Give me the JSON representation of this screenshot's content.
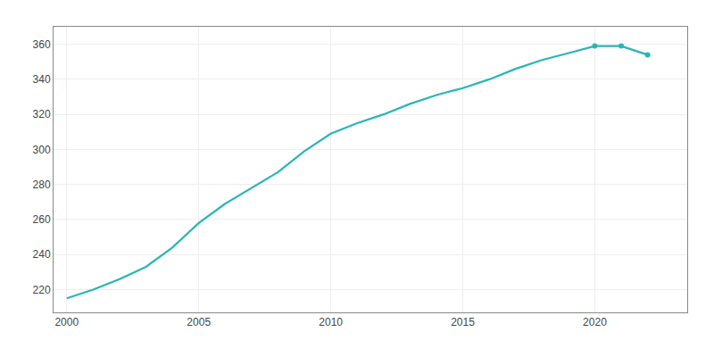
{
  "chart_data": {
    "type": "line",
    "x": [
      2000,
      2001,
      2002,
      2003,
      2004,
      2005,
      2006,
      2007,
      2008,
      2009,
      2010,
      2011,
      2012,
      2013,
      2014,
      2015,
      2016,
      2017,
      2018,
      2019,
      2020,
      2021,
      2022
    ],
    "series": [
      {
        "color": "#29b5b5",
        "line_style": "solid",
        "marker": "none",
        "values": [
          215,
          220,
          226,
          233,
          244,
          258,
          269,
          278,
          287,
          299,
          309,
          315,
          320,
          326,
          331,
          335,
          340,
          346,
          351,
          355,
          359,
          359,
          354
        ]
      },
      {
        "color": "#29b5b5",
        "line_style": "none",
        "marker": "circle",
        "values": [
          null,
          null,
          null,
          null,
          null,
          null,
          null,
          null,
          null,
          null,
          null,
          null,
          null,
          null,
          null,
          null,
          null,
          null,
          null,
          null,
          359,
          359,
          354
        ]
      }
    ],
    "xlim": [
      1999.5,
      2023.5
    ],
    "ylim": [
      207,
      370
    ],
    "xticks": [
      2000,
      2005,
      2010,
      2015,
      2020
    ],
    "yticks": [
      220,
      240,
      260,
      280,
      300,
      320,
      340,
      360
    ],
    "grid": true
  }
}
